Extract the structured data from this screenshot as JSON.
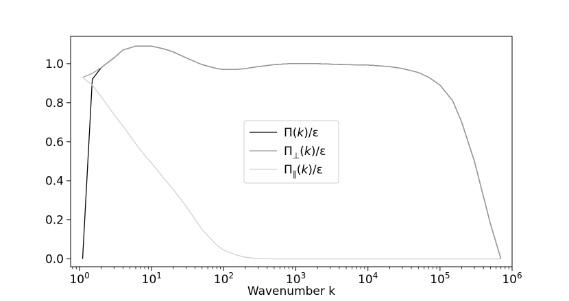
{
  "chart_data": {
    "type": "line",
    "title": "",
    "xlabel": "Wavenumber k",
    "ylabel": "",
    "xscale": "log",
    "xlim": [
      0.75,
      1000000
    ],
    "ylim": [
      -0.04,
      1.14
    ],
    "grid": false,
    "legend_position": "center",
    "x_ticks": [
      {
        "value": 1,
        "base": "10",
        "exp": "0"
      },
      {
        "value": 10,
        "base": "10",
        "exp": "1"
      },
      {
        "value": 100,
        "base": "10",
        "exp": "2"
      },
      {
        "value": 1000,
        "base": "10",
        "exp": "3"
      },
      {
        "value": 10000,
        "base": "10",
        "exp": "4"
      },
      {
        "value": 100000,
        "base": "10",
        "exp": "5"
      },
      {
        "value": 1000000,
        "base": "10",
        "exp": "6"
      }
    ],
    "y_ticks": [
      {
        "value": 0.0,
        "label": "0.0"
      },
      {
        "value": 0.2,
        "label": "0.2"
      },
      {
        "value": 0.4,
        "label": "0.4"
      },
      {
        "value": 0.6,
        "label": "0.6"
      },
      {
        "value": 0.8,
        "label": "0.8"
      },
      {
        "value": 1.0,
        "label": "1.0"
      }
    ],
    "series": [
      {
        "name_main": "Π(",
        "name_var": "k",
        "name_tail": ")/ε",
        "name_sub": "",
        "color": "#000000",
        "x": [
          1.1,
          1.5,
          2,
          3,
          4,
          6,
          8,
          10,
          15,
          20,
          30,
          50,
          80,
          100,
          150,
          200,
          300,
          500,
          800,
          1000,
          2000,
          5000,
          10000,
          20000,
          30000,
          50000,
          70000,
          100000,
          150000,
          200000,
          300000,
          400000,
          500000,
          700000
        ],
        "y": [
          0.0,
          0.92,
          0.98,
          1.03,
          1.07,
          1.09,
          1.09,
          1.09,
          1.075,
          1.06,
          1.03,
          0.995,
          0.975,
          0.97,
          0.97,
          0.975,
          0.985,
          0.995,
          1.0,
          1.0,
          1.0,
          0.995,
          0.993,
          0.985,
          0.975,
          0.955,
          0.93,
          0.89,
          0.81,
          0.7,
          0.5,
          0.32,
          0.18,
          0.0
        ]
      },
      {
        "name_main": "Π",
        "name_var": "k",
        "name_tail": ")/ε",
        "name_sub": "⊥",
        "color": "#9a9a9a",
        "x": [
          1.1,
          1.5,
          2,
          3,
          4,
          6,
          8,
          10,
          15,
          20,
          30,
          50,
          80,
          100,
          150,
          200,
          300,
          500,
          800,
          1000,
          2000,
          5000,
          10000,
          20000,
          30000,
          50000,
          70000,
          100000,
          150000,
          200000,
          300000,
          400000,
          500000,
          700000
        ],
        "y": [
          0.93,
          0.95,
          0.98,
          1.03,
          1.07,
          1.09,
          1.09,
          1.09,
          1.075,
          1.06,
          1.03,
          0.995,
          0.975,
          0.97,
          0.97,
          0.975,
          0.985,
          0.995,
          1.0,
          1.0,
          1.0,
          0.995,
          0.993,
          0.985,
          0.975,
          0.955,
          0.93,
          0.89,
          0.81,
          0.7,
          0.5,
          0.32,
          0.18,
          0.0
        ]
      },
      {
        "name_main": "Π",
        "name_var": "k",
        "name_tail": ")/ε",
        "name_sub": "∥",
        "color": "#d0d0d0",
        "x": [
          1.1,
          1.5,
          2,
          3,
          4,
          6,
          8,
          10,
          15,
          20,
          30,
          50,
          80,
          100,
          150,
          200,
          300,
          500,
          1000,
          10000,
          100000,
          700000
        ],
        "y": [
          0.93,
          0.89,
          0.83,
          0.74,
          0.68,
          0.59,
          0.53,
          0.49,
          0.41,
          0.355,
          0.27,
          0.15,
          0.07,
          0.045,
          0.02,
          0.008,
          0.002,
          0.0,
          0.0,
          0.0,
          0.0,
          0.0
        ]
      }
    ]
  }
}
